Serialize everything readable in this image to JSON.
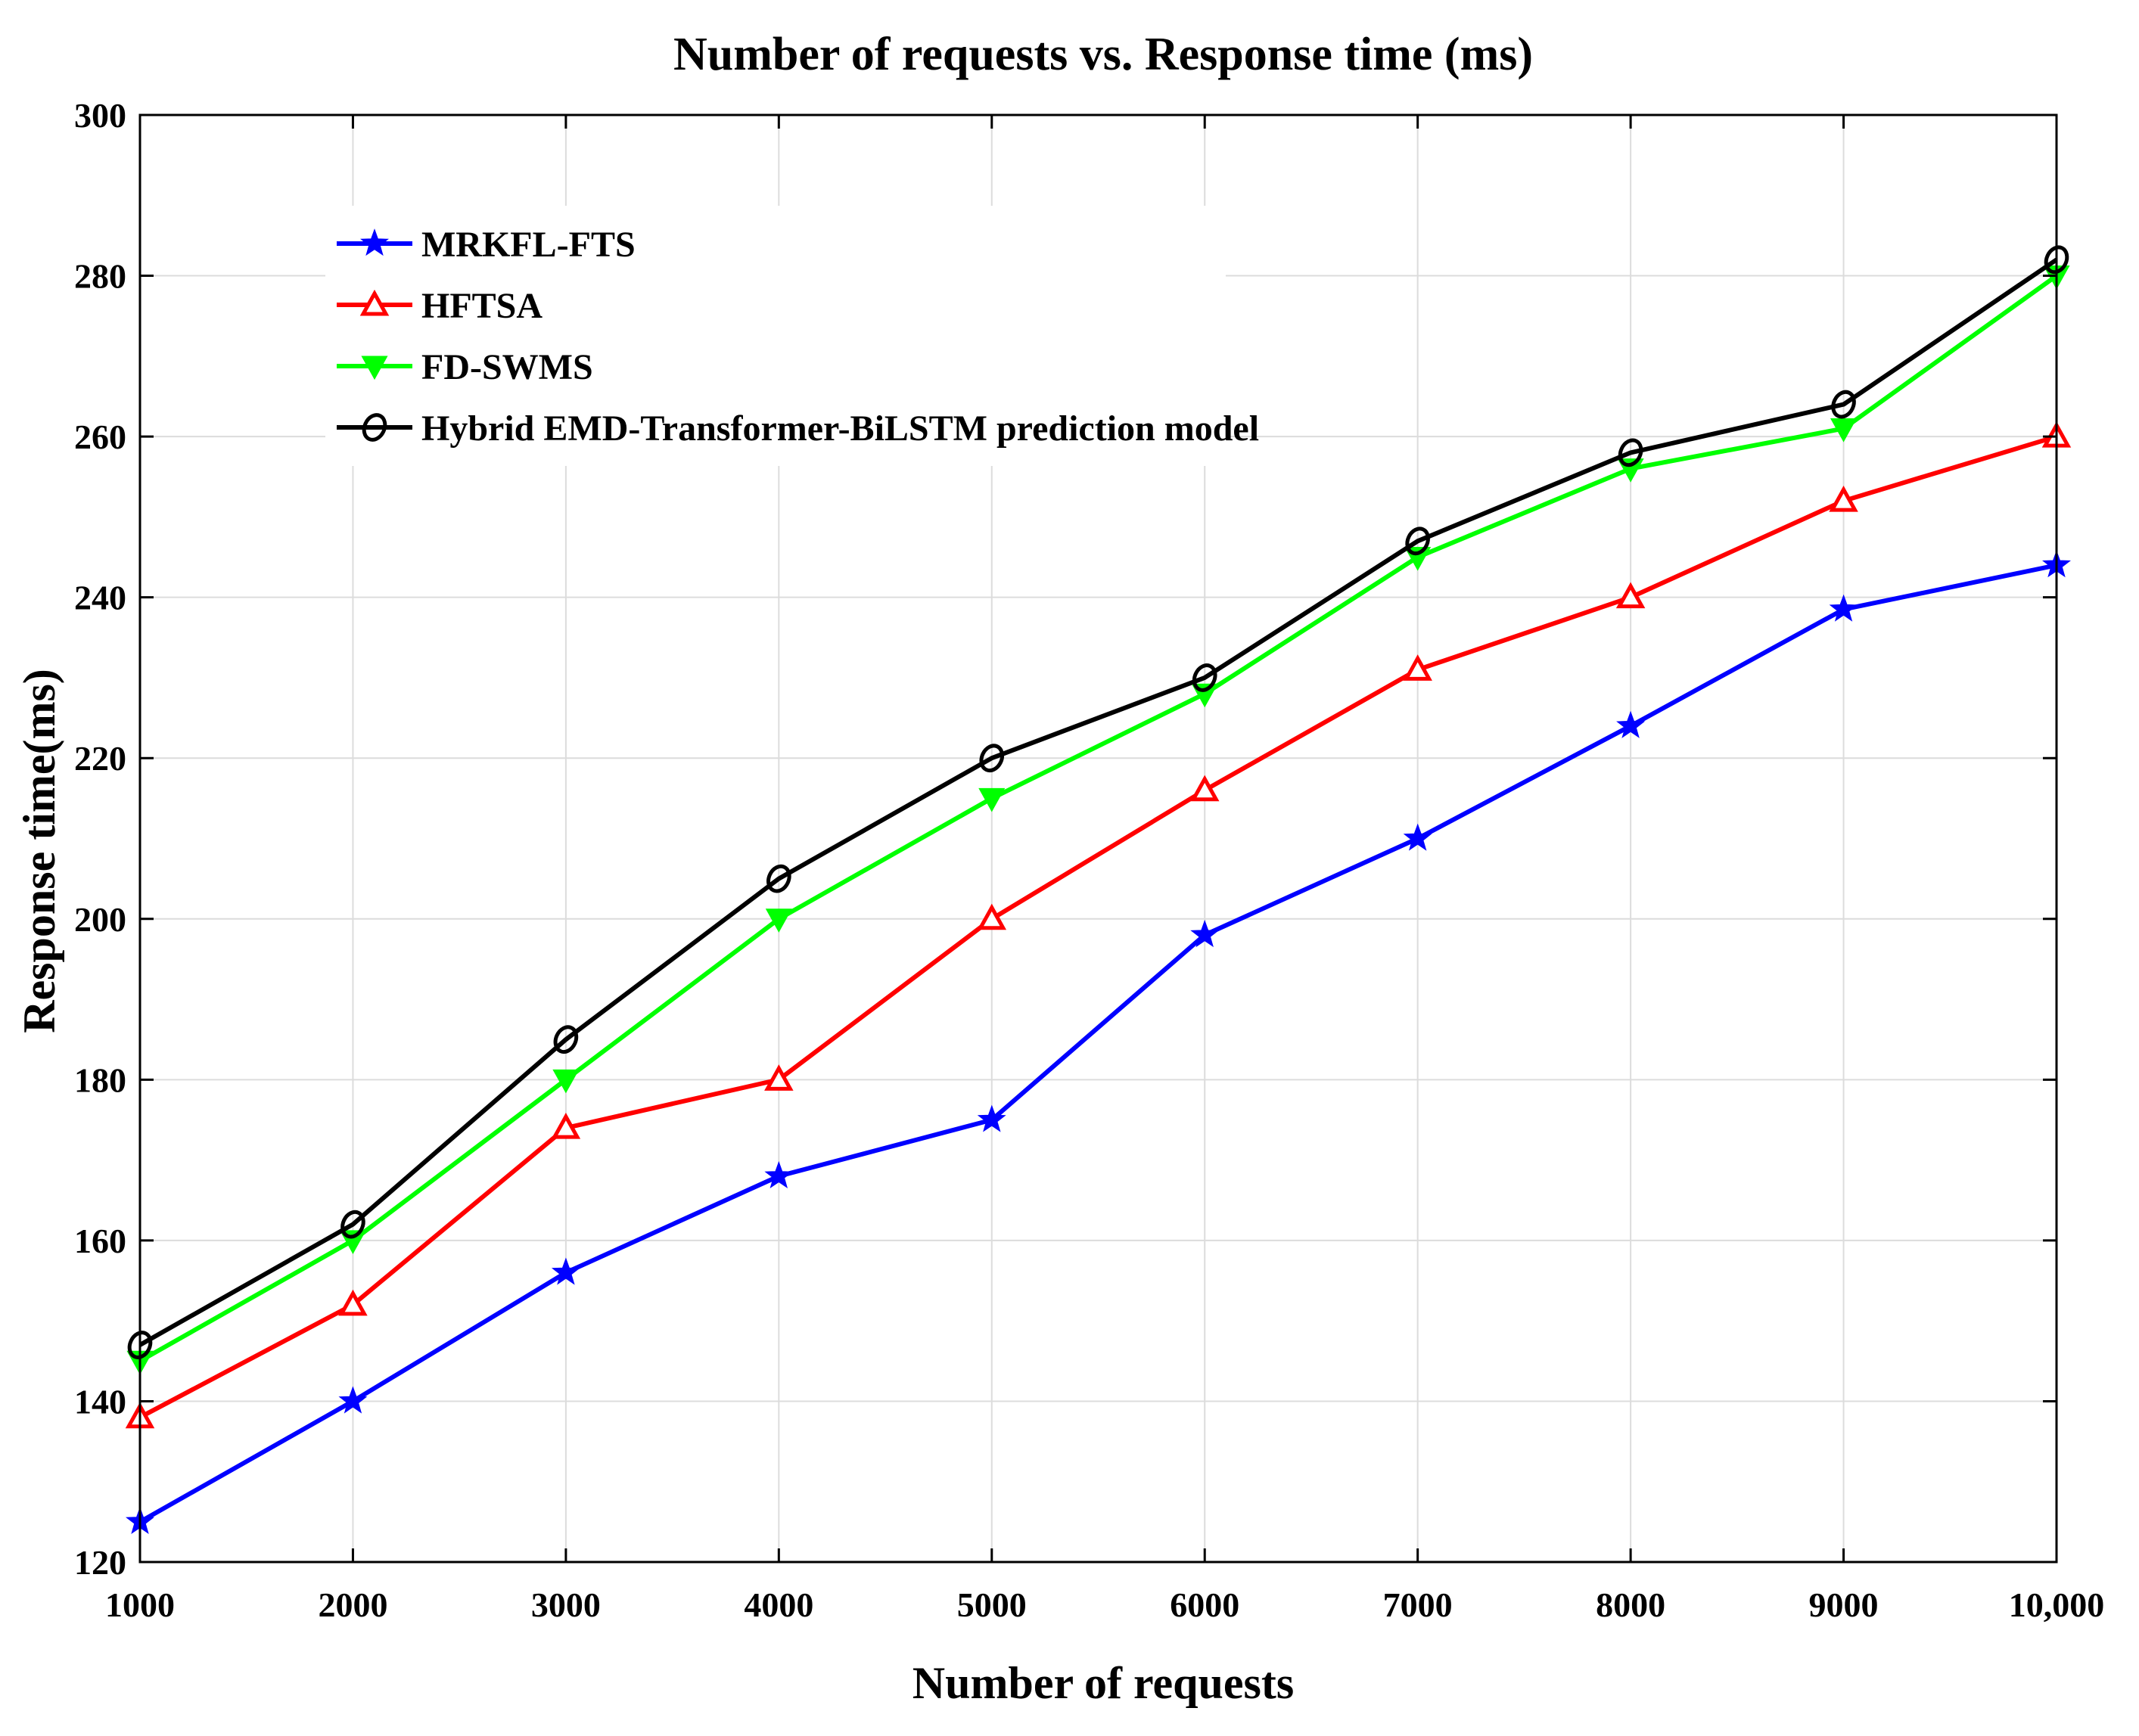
{
  "chart_data": {
    "type": "line",
    "title": "Number of requests vs. Response time (ms)",
    "xlabel": "Number of requests",
    "ylabel": "Response time(ms)",
    "x": [
      1000,
      2000,
      3000,
      4000,
      5000,
      6000,
      7000,
      8000,
      9000,
      10000
    ],
    "x_tick_labels": [
      "1000",
      "2000",
      "3000",
      "4000",
      "5000",
      "6000",
      "7000",
      "8000",
      "9000",
      "10,000"
    ],
    "xlim": [
      1000,
      10000
    ],
    "ylim": [
      120,
      300
    ],
    "y_ticks": [
      120,
      140,
      160,
      180,
      200,
      220,
      240,
      260,
      280,
      300
    ],
    "y_tick_labels": [
      "120",
      "140",
      "160",
      "180",
      "200",
      "220",
      "240",
      "260",
      "280",
      "300"
    ],
    "grid": true,
    "legend_position": "top-left",
    "series": [
      {
        "name": "MRKFL-FTS",
        "color": "#0000ff",
        "marker": "star",
        "values": [
          125,
          140,
          156,
          168,
          175,
          198,
          210,
          224,
          238.5,
          244
        ]
      },
      {
        "name": "HFTSA",
        "color": "#ff0000",
        "marker": "triangle-up",
        "values": [
          138,
          152,
          174,
          180,
          200,
          216,
          231,
          240,
          252,
          260
        ]
      },
      {
        "name": "FD-SWMS",
        "color": "#00ff00",
        "marker": "triangle-down",
        "values": [
          145,
          160,
          180,
          200,
          215,
          228,
          245,
          256,
          261,
          280
        ]
      },
      {
        "name": "Hybrid EMD-Transformer-BiLSTM prediction model",
        "color": "#000000",
        "marker": "diamond",
        "values": [
          147,
          162,
          185,
          205,
          220,
          230,
          247,
          258,
          264,
          282
        ]
      }
    ]
  }
}
